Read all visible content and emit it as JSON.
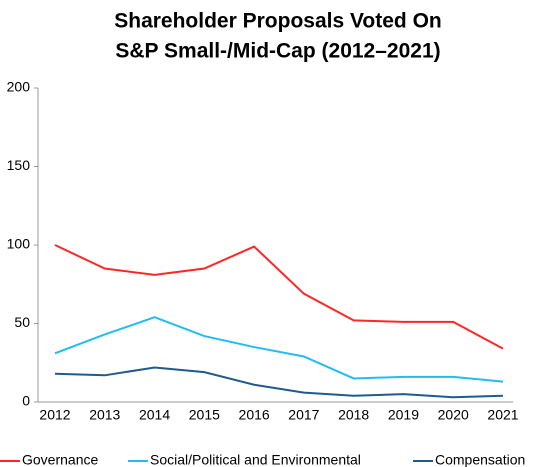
{
  "chart_data": {
    "type": "line",
    "title": [
      "Shareholder Proposals Voted On",
      "S&P Small-/Mid-Cap (2012–2021)"
    ],
    "categories": [
      "2012",
      "2013",
      "2014",
      "2015",
      "2016",
      "2017",
      "2018",
      "2019",
      "2020",
      "2021"
    ],
    "series": [
      {
        "name": "Governance",
        "color": "#ff2626",
        "values": [
          100,
          85,
          81,
          85,
          99,
          69,
          52,
          51,
          51,
          34
        ]
      },
      {
        "name": "Social/Political and Environmental",
        "color": "#21bdf0",
        "values": [
          31,
          43,
          54,
          42,
          35,
          29,
          15,
          16,
          16,
          13
        ]
      },
      {
        "name": "Compensation",
        "color": "#1f5b8c",
        "values": [
          18,
          17,
          22,
          19,
          11,
          6,
          4,
          5,
          3,
          4
        ]
      }
    ],
    "ylim": [
      0,
      200
    ],
    "yticks": [
      0,
      50,
      100,
      150,
      200
    ],
    "grid": false,
    "legend": "bottom"
  }
}
